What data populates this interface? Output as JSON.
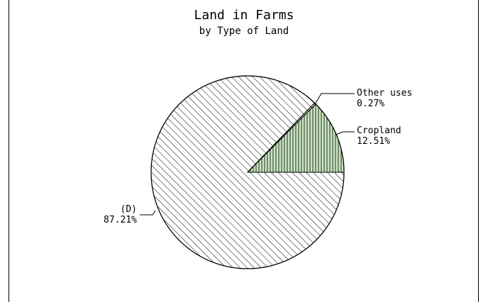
{
  "chart_data": {
    "type": "pie",
    "title": "Land in Farms",
    "subtitle": "by Type of Land",
    "start_angle_deg": 0,
    "direction": "counterclockwise",
    "slices": [
      {
        "label": "Cropland",
        "value": 12.51,
        "value_text": "12.51%",
        "fill": "#c8e6c0",
        "hatch": "vertical"
      },
      {
        "label": "Other uses",
        "value": 0.27,
        "value_text": "0.27%",
        "fill": "#ffffff",
        "hatch": "diagonal"
      },
      {
        "label": "(D)",
        "value": 87.21,
        "value_text": "87.21%",
        "fill": "#ffffff",
        "hatch": "diagonal"
      }
    ],
    "legend": "none"
  }
}
